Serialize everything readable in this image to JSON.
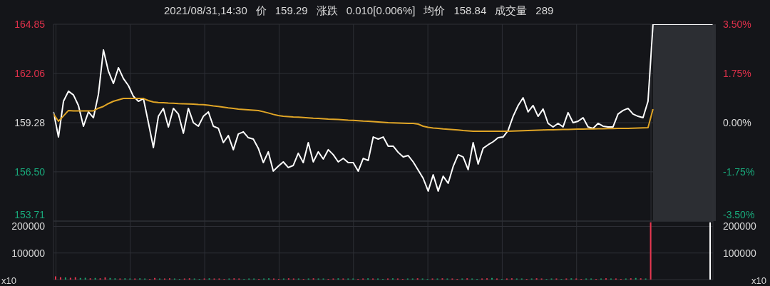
{
  "chart_data": [
    {
      "type": "line",
      "annotations": [
        "2021/08/31,14:30",
        "价",
        "159.29",
        "涨跌",
        "0.010[0.006%]",
        "均价",
        "158.84",
        "成交量",
        "289"
      ],
      "categories": [
        null,
        null,
        null,
        null,
        null,
        null,
        null,
        null,
        null,
        null,
        null,
        null,
        null,
        null,
        null,
        null,
        null,
        null,
        null,
        null,
        null,
        null,
        null,
        null,
        null,
        null,
        null,
        null,
        null,
        null,
        null,
        null,
        null,
        null,
        null,
        null,
        null,
        null,
        null,
        null,
        null,
        null,
        null,
        null,
        null,
        null,
        null,
        null,
        null,
        null,
        null,
        null,
        null,
        null,
        null,
        null,
        null,
        null,
        null,
        null,
        null,
        null,
        null,
        null,
        null,
        null,
        null,
        null,
        null,
        null,
        null,
        null,
        null,
        null,
        null,
        null,
        null,
        null,
        null,
        null,
        null,
        null,
        null,
        null,
        null,
        null,
        null,
        null,
        null,
        null,
        null,
        null,
        null,
        null,
        null,
        null,
        null,
        null,
        null,
        null,
        null,
        null,
        null,
        null,
        null,
        null,
        null,
        null,
        null,
        null,
        null,
        null,
        null,
        null,
        null,
        null,
        null,
        null,
        null,
        null,
        null,
        null,
        null,
        null,
        null,
        null,
        null,
        null,
        null,
        null,
        null,
        null,
        null
      ],
      "series": [
        {
          "color": "#ffffff",
          "values": [
            159.89,
            158.47,
            160.49,
            161.06,
            160.85,
            160.25,
            159.08,
            159.89,
            159.56,
            160.89,
            163.4,
            162.19,
            161.5,
            162.39,
            161.78,
            161.38,
            160.77,
            160.49,
            160.65,
            159.28,
            157.87,
            159.64,
            160.09,
            159.04,
            160.09,
            159.77,
            158.68,
            160.09,
            159.28,
            159.08,
            159.64,
            159.89,
            159.08,
            158.96,
            158.15,
            158.55,
            157.75,
            158.64,
            158.76,
            158.43,
            158.35,
            157.83,
            157.02,
            157.63,
            156.54,
            156.82,
            157.06,
            156.74,
            156.86,
            157.55,
            157.02,
            158.15,
            157.06,
            157.63,
            157.22,
            157.75,
            157.47,
            157.06,
            157.26,
            157.02,
            157.02,
            156.54,
            157.26,
            157.14,
            158.47,
            158.35,
            158.47,
            157.95,
            157.95,
            157.6,
            157.34,
            157.42,
            157.06,
            156.6,
            156.13,
            155.41,
            156.33,
            155.41,
            156.25,
            155.85,
            156.8,
            157.47,
            157.34,
            156.62,
            158.15,
            156.94,
            157.83,
            158.03,
            158.2,
            158.43,
            158.47,
            158.84,
            159.64,
            160.25,
            160.69,
            159.89,
            160.25,
            159.64,
            160.05,
            159.24,
            159.04,
            159.24,
            159.04,
            159.85,
            159.28,
            159.36,
            159.56,
            159.04,
            158.96,
            159.24,
            159.08,
            159.04,
            159.04,
            159.77,
            159.97,
            160.09,
            159.77,
            159.64,
            159.56,
            160.49,
            164.85,
            164.85,
            164.85,
            164.85,
            164.85,
            164.85,
            164.85,
            164.85,
            164.85,
            164.85,
            164.85,
            164.85,
            164.85
          ]
        },
        {
          "color": "#e0a526",
          "values": [
            159.77,
            159.36,
            159.66,
            159.97,
            159.95,
            159.95,
            159.95,
            159.95,
            159.95,
            160.1,
            160.2,
            160.36,
            160.49,
            160.57,
            160.65,
            160.65,
            160.65,
            160.65,
            160.65,
            160.53,
            160.45,
            160.42,
            160.41,
            160.39,
            160.38,
            160.36,
            160.35,
            160.34,
            160.33,
            160.31,
            160.3,
            160.27,
            160.23,
            160.2,
            160.16,
            160.12,
            160.09,
            160.05,
            160.03,
            160.01,
            159.99,
            159.97,
            159.9,
            159.83,
            159.75,
            159.68,
            159.64,
            159.62,
            159.6,
            159.59,
            159.57,
            159.55,
            159.53,
            159.52,
            159.5,
            159.48,
            159.47,
            159.46,
            159.44,
            159.42,
            159.41,
            159.39,
            159.37,
            159.36,
            159.34,
            159.32,
            159.3,
            159.28,
            159.27,
            159.26,
            159.25,
            159.24,
            159.24,
            159.2,
            159.08,
            159.02,
            158.98,
            158.96,
            158.93,
            158.91,
            158.89,
            158.87,
            158.84,
            158.82,
            158.8,
            158.8,
            158.8,
            158.8,
            158.8,
            158.8,
            158.8,
            158.8,
            158.81,
            158.82,
            158.83,
            158.84,
            158.85,
            158.86,
            158.87,
            158.88,
            158.88,
            158.89,
            158.9,
            158.9,
            158.91,
            158.92,
            158.92,
            158.93,
            158.93,
            158.94,
            158.94,
            158.95,
            158.95,
            158.96,
            158.96,
            158.96,
            158.97,
            158.98,
            158.99,
            159.0,
            160.05,
            null,
            null,
            null,
            null,
            null,
            null,
            null,
            null,
            null,
            null,
            null,
            null
          ]
        }
      ],
      "ylim": [
        153.71,
        164.85
      ],
      "yticks": [
        153.71,
        {
          "value": 156.5,
          "label": "156.50"
        },
        159.28,
        162.06,
        164.85
      ],
      "y2lim": [
        -3.5,
        3.5
      ],
      "y2ticks": [
        {
          "value": -3.5,
          "label": "-3.50%"
        },
        {
          "value": -1.75,
          "label": "-1.75%"
        },
        {
          "value": 0,
          "label": "0.00%"
        },
        {
          "value": 1.75,
          "label": "1.75%"
        },
        {
          "value": 3.5,
          "label": "3.50%"
        }
      ],
      "grid": true,
      "marker": "none",
      "line_style": "solid",
      "legend": false
    },
    {
      "type": "bar",
      "annotations": [
        "x10"
      ],
      "categories": [
        null,
        null,
        null,
        null,
        null,
        null,
        null,
        null,
        null,
        null,
        null,
        null,
        null,
        null,
        null,
        null,
        null,
        null,
        null,
        null,
        null,
        null,
        null,
        null,
        null,
        null,
        null,
        null,
        null,
        null,
        null,
        null,
        null,
        null,
        null,
        null,
        null,
        null,
        null,
        null,
        null,
        null,
        null,
        null,
        null,
        null,
        null,
        null,
        null,
        null,
        null,
        null,
        null,
        null,
        null,
        null,
        null,
        null,
        null,
        null,
        null,
        null,
        null,
        null,
        null,
        null,
        null,
        null,
        null,
        null,
        null,
        null,
        null,
        null,
        null,
        null,
        null,
        null,
        null,
        null,
        null,
        null,
        null,
        null,
        null,
        null,
        null,
        null,
        null,
        null,
        null,
        null,
        null,
        null,
        null,
        null,
        null,
        null,
        null,
        null,
        null,
        null,
        null,
        null,
        null,
        null,
        null,
        null,
        null,
        null,
        null,
        null,
        null,
        null,
        null,
        null,
        null,
        null,
        null,
        null,
        null,
        null,
        null,
        null,
        null,
        null,
        null,
        null,
        null,
        null,
        null,
        null,
        null
      ],
      "values": [
        12000,
        9000,
        8000,
        7000,
        9000,
        6000,
        7000,
        5000,
        6000,
        5000,
        8000,
        6000,
        5000,
        4000,
        5000,
        4000,
        4000,
        5000,
        4000,
        3000,
        6000,
        4000,
        4000,
        5000,
        4000,
        3000,
        4000,
        5000,
        4000,
        3000,
        4000,
        5000,
        4000,
        4000,
        3000,
        4000,
        5000,
        4000,
        3000,
        4000,
        4000,
        3000,
        4000,
        5000,
        4000,
        3000,
        4000,
        5000,
        4000,
        4000,
        3000,
        4000,
        5000,
        4000,
        4000,
        3000,
        4000,
        5000,
        4000,
        4000,
        4000,
        3000,
        4000,
        5000,
        4000,
        4000,
        3000,
        4000,
        5000,
        4000,
        3000,
        4000,
        4000,
        5000,
        4000,
        3000,
        4000,
        4000,
        5000,
        4000,
        4000,
        3000,
        4000,
        5000,
        4000,
        3000,
        4000,
        5000,
        6000,
        4000,
        3000,
        4000,
        5000,
        4000,
        4000,
        3000,
        4000,
        5000,
        4000,
        3000,
        4000,
        4000,
        3000,
        4000,
        5000,
        4000,
        3000,
        4000,
        4000,
        3000,
        4000,
        5000,
        4000,
        4000,
        3000,
        4000,
        5000,
        6000,
        5000,
        4000,
        215000,
        null,
        null,
        null,
        null,
        null,
        null,
        null,
        null,
        null,
        null,
        null,
        215000
      ],
      "colors": [
        "#e8364f",
        "#e8364f",
        "#1aa36f",
        "#e8364f",
        "#e8364f",
        "#1aa36f",
        "#1aa36f",
        "#e8364f",
        "#1aa36f",
        "#e8364f",
        "#e8364f",
        "#1aa36f",
        "#1aa36f",
        "#e8364f",
        "#1aa36f",
        "#1aa36f",
        "#e8364f",
        "#1aa36f",
        "#1aa36f",
        "#e8364f",
        "#e8364f",
        "#1aa36f",
        "#e8364f",
        "#e8364f",
        "#1aa36f",
        "#1aa36f",
        "#e8364f",
        "#e8364f",
        "#1aa36f",
        "#1aa36f",
        "#e8364f",
        "#1aa36f",
        "#e8364f",
        "#e8364f",
        "#e8364f",
        "#1aa36f",
        "#e8364f",
        "#e8364f",
        "#1aa36f",
        "#1aa36f",
        "#1aa36f",
        "#e8364f",
        "#1aa36f",
        "#1aa36f",
        "#e8364f",
        "#e8364f",
        "#1aa36f",
        "#e8364f",
        "#e8364f",
        "#1aa36f",
        "#e8364f",
        "#1aa36f",
        "#e8364f",
        "#1aa36f",
        "#1aa36f",
        "#e8364f",
        "#e8364f",
        "#1aa36f",
        "#e8364f",
        "#1aa36f",
        "#1aa36f",
        "#e8364f",
        "#e8364f",
        "#1aa36f",
        "#e8364f",
        "#1aa36f",
        "#1aa36f",
        "#e8364f",
        "#1aa36f",
        "#e8364f",
        "#e8364f",
        "#1aa36f",
        "#1aa36f",
        "#e8364f",
        "#1aa36f",
        "#1aa36f",
        "#e8364f",
        "#1aa36f",
        "#e8364f",
        "#1aa36f",
        "#e8364f",
        "#e8364f",
        "#1aa36f",
        "#e8364f",
        "#1aa36f",
        "#1aa36f",
        "#e8364f",
        "#e8364f",
        "#1aa36f",
        "#e8364f",
        "#1aa36f",
        "#e8364f",
        "#e8364f",
        "#1aa36f",
        "#1aa36f",
        "#e8364f",
        "#1aa36f",
        "#e8364f",
        "#e8364f",
        "#1aa36f",
        "#1aa36f",
        "#e8364f",
        "#1aa36f",
        "#e8364f",
        "#1aa36f",
        "#e8364f",
        "#e8364f",
        "#1aa36f",
        "#1aa36f",
        "#e8364f",
        "#1aa36f",
        "#e8364f",
        "#1aa36f",
        "#e8364f",
        "#e8364f",
        "#1aa36f",
        "#e8364f",
        "#1aa36f",
        "#e8364f",
        "#1aa36f",
        "#e8364f",
        "#ffffff",
        "#ffffff",
        "#ffffff",
        "#ffffff",
        "#ffffff",
        "#ffffff",
        "#ffffff",
        "#ffffff",
        "#ffffff",
        "#ffffff",
        "#ffffff",
        "#ffffff"
      ],
      "ylim": [
        0,
        220000
      ],
      "yticks": [
        100000,
        200000
      ],
      "y2lim": [
        0,
        220000
      ],
      "y2ticks": [
        100000,
        200000
      ],
      "grid": true,
      "legend": false
    }
  ]
}
